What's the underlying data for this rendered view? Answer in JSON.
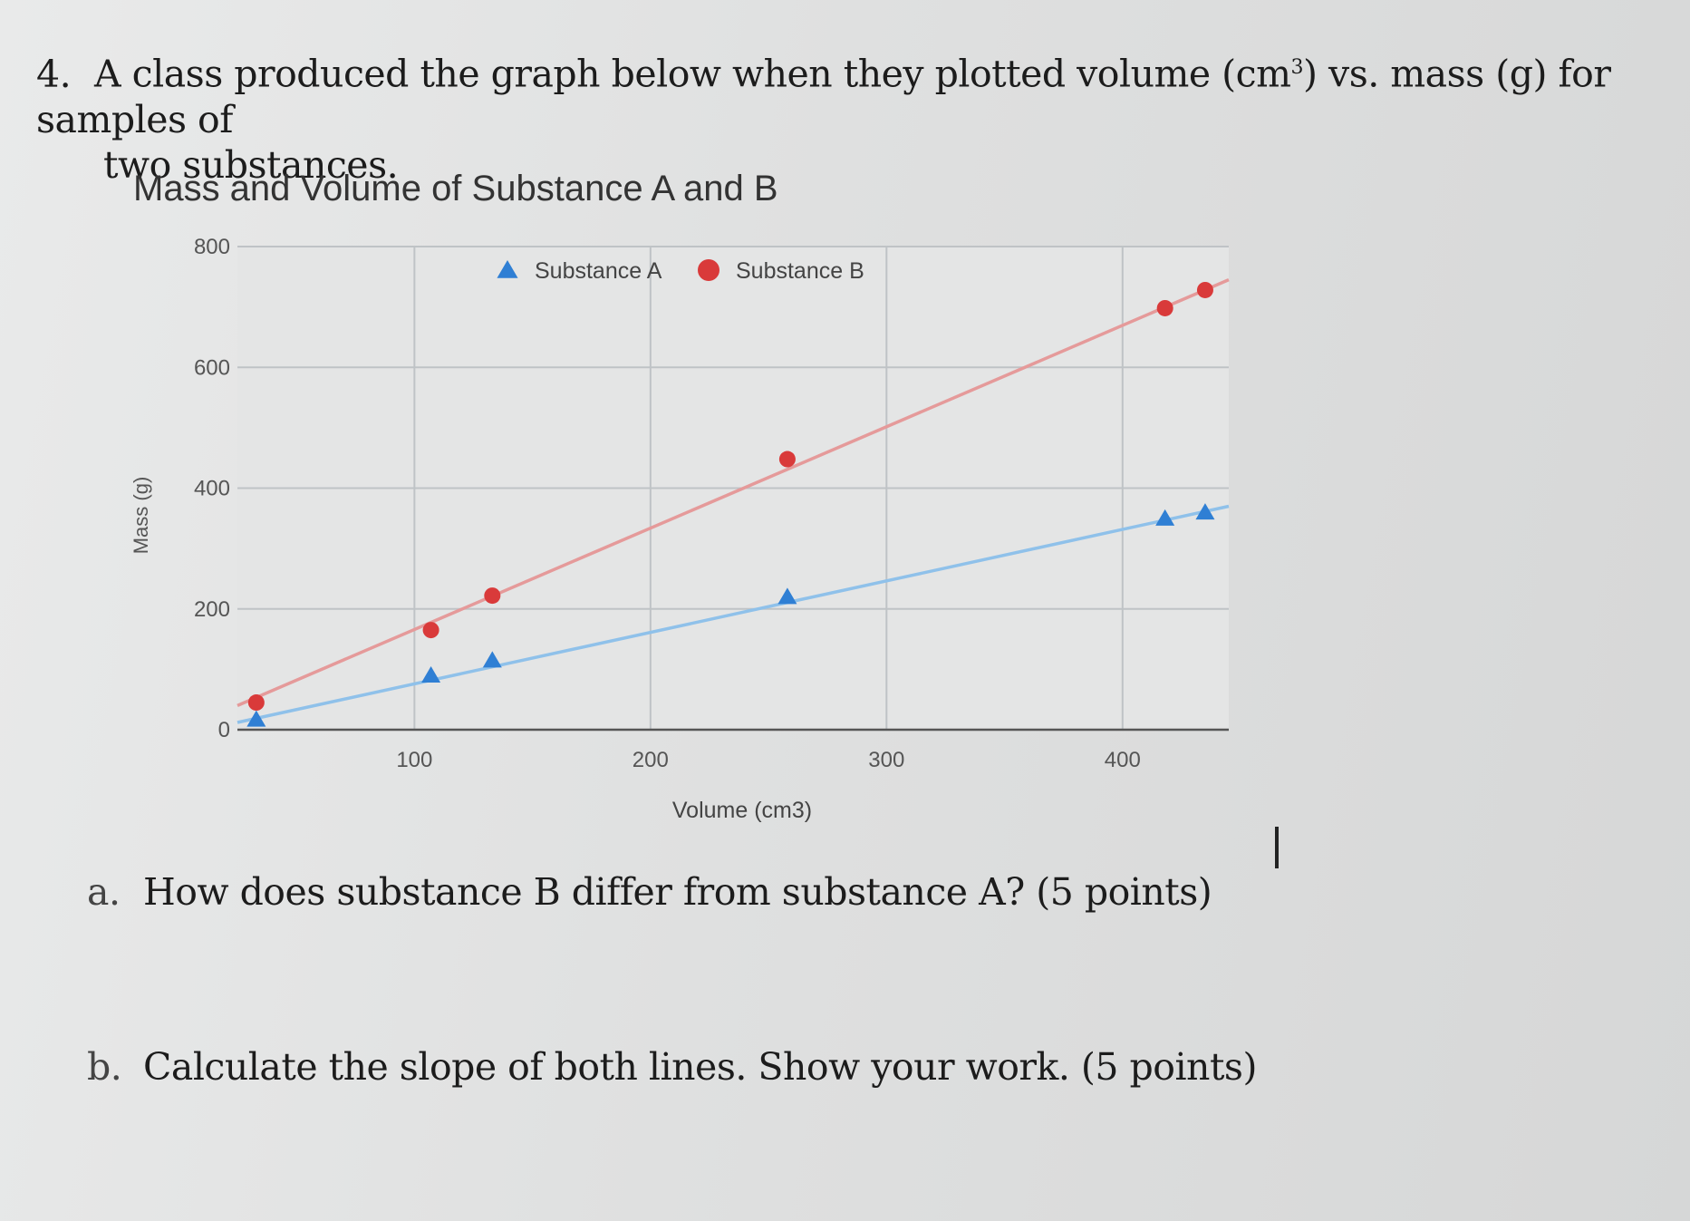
{
  "question": {
    "number": "4.",
    "text_part1": "A class produced the graph below when they plotted volume (cm",
    "superscript": "3",
    "text_part2": ") vs. mass (g) for samples of",
    "text_line2": "two substances."
  },
  "parts": [
    {
      "letter": "a.",
      "text": "How does substance B differ from substance A?  (5 points)"
    },
    {
      "letter": "b.",
      "text": "Calculate the slope of both lines.  Show your work. (5 points)"
    }
  ],
  "chart_data": {
    "type": "scatter",
    "title": "Mass and Volume of Substance A and B",
    "xlabel": "Volume (cm3)",
    "ylabel": "Mass (g)",
    "xlim": [
      25,
      445
    ],
    "ylim": [
      0,
      800
    ],
    "x_ticks": [
      100,
      200,
      300,
      400
    ],
    "y_ticks": [
      0,
      200,
      400,
      600,
      800
    ],
    "grid": true,
    "legend_position": "top-center",
    "trendlines": true,
    "series": [
      {
        "name": "Substance A",
        "marker": "triangle",
        "color": "#2f7fd4",
        "line_color": "#8fc1ea",
        "points": [
          [
            33,
            17
          ],
          [
            107,
            90
          ],
          [
            133,
            115
          ],
          [
            258,
            220
          ],
          [
            418,
            350
          ],
          [
            435,
            360
          ]
        ],
        "trendline": [
          [
            25,
            12
          ],
          [
            445,
            370
          ]
        ]
      },
      {
        "name": "Substance B",
        "marker": "circle",
        "color": "#d93a3a",
        "line_color": "#e59a9a",
        "points": [
          [
            33,
            45
          ],
          [
            107,
            165
          ],
          [
            133,
            222
          ],
          [
            258,
            448
          ],
          [
            418,
            698
          ],
          [
            435,
            728
          ]
        ],
        "trendline": [
          [
            25,
            40
          ],
          [
            445,
            745
          ]
        ]
      }
    ]
  }
}
